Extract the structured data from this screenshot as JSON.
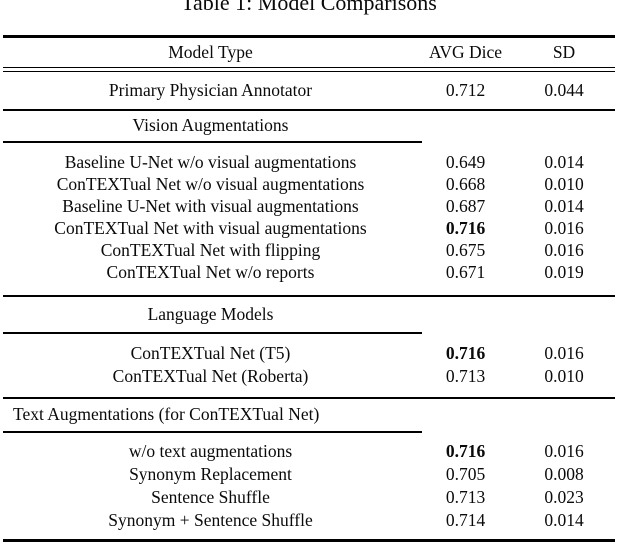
{
  "colors": {
    "text": "#0a0a0a",
    "background": "#ffffff",
    "rule": "#000000"
  },
  "caption": "Table 1: Model Comparisons",
  "columns": {
    "model_type": "Model Type",
    "avg_dice": "AVG Dice",
    "sd": "SD"
  },
  "sections": [
    {
      "header": null,
      "rows": [
        {
          "model": "Primary Physician Annotator",
          "avg_dice": "0.712",
          "sd": "0.044",
          "bold": false
        }
      ]
    },
    {
      "header": "Vision Augmentations",
      "header_align": "center",
      "rows": [
        {
          "model": "Baseline U-Net w/o visual augmentations",
          "avg_dice": "0.649",
          "sd": "0.014",
          "bold": false
        },
        {
          "model": "ConTEXTual Net w/o visual augmentations",
          "avg_dice": "0.668",
          "sd": "0.010",
          "bold": false
        },
        {
          "model": "Baseline U-Net with visual augmentations",
          "avg_dice": "0.687",
          "sd": "0.014",
          "bold": false
        },
        {
          "model": "ConTEXTual Net with visual augmentations",
          "avg_dice": "0.716",
          "sd": "0.016",
          "bold": true
        },
        {
          "model": "ConTEXTual Net with flipping",
          "avg_dice": "0.675",
          "sd": "0.016",
          "bold": false
        },
        {
          "model": "ConTEXTual Net w/o reports",
          "avg_dice": "0.671",
          "sd": "0.019",
          "bold": false
        }
      ]
    },
    {
      "header": "Language Models",
      "header_align": "center",
      "rows": [
        {
          "model": "ConTEXTual Net (T5)",
          "avg_dice": "0.716",
          "sd": "0.016",
          "bold": true
        },
        {
          "model": "ConTEXTual Net (Roberta)",
          "avg_dice": "0.713",
          "sd": "0.010",
          "bold": false
        }
      ]
    },
    {
      "header": "Text Augmentations (for ConTEXTual Net)",
      "header_align": "left",
      "rows": [
        {
          "model": "w/o text augmentations",
          "avg_dice": "0.716",
          "sd": "0.016",
          "bold": true
        },
        {
          "model": "Synonym Replacement",
          "avg_dice": "0.705",
          "sd": "0.008",
          "bold": false
        },
        {
          "model": "Sentence Shuffle",
          "avg_dice": "0.713",
          "sd": "0.023",
          "bold": false
        },
        {
          "model": "Synonym + Sentence Shuffle",
          "avg_dice": "0.714",
          "sd": "0.014",
          "bold": false
        }
      ]
    }
  ]
}
